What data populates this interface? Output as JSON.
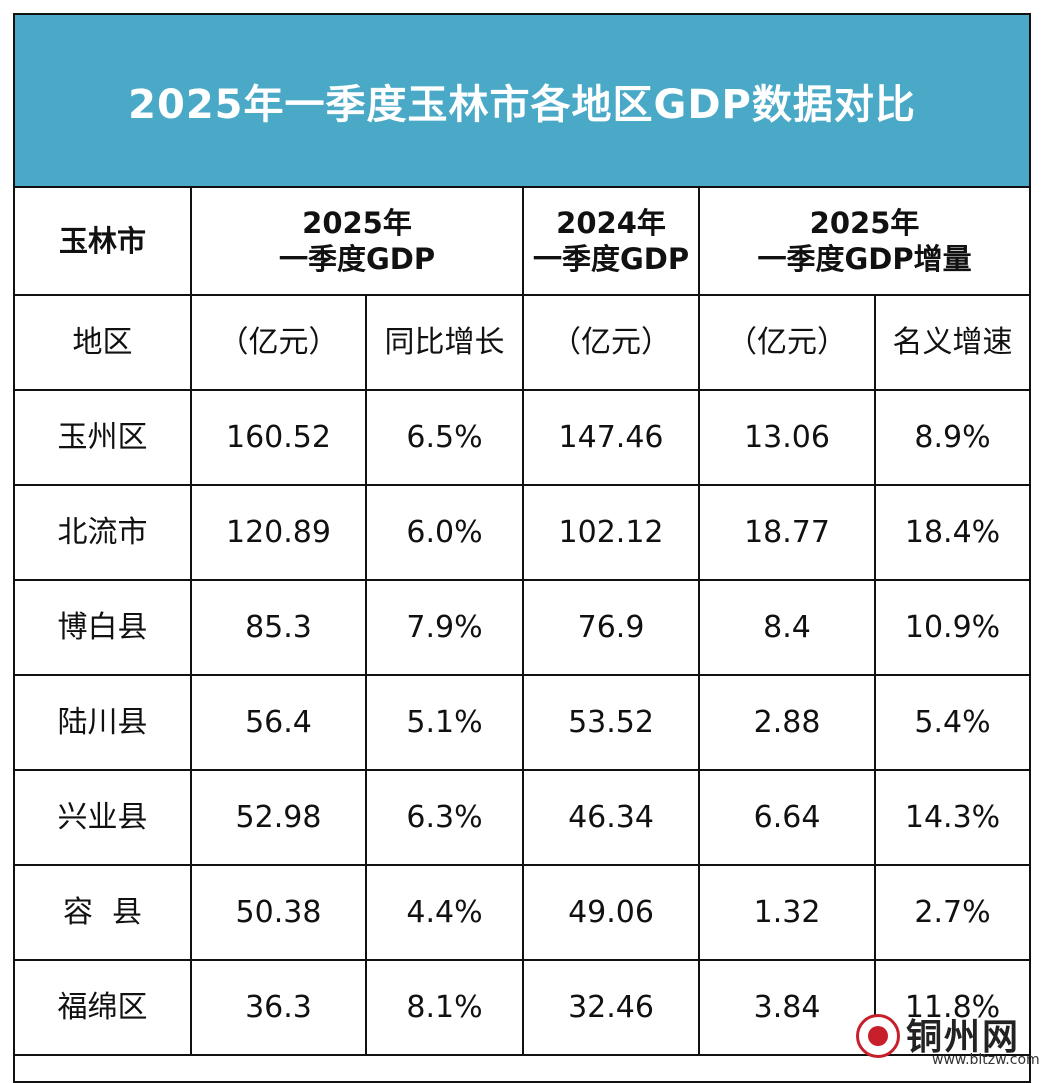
{
  "title": "2025年一季度玉林市各地区GDP数据对比",
  "header": {
    "city": "玉林市",
    "gdp2025_line1": "2025年",
    "gdp2025_line2": "一季度GDP",
    "gdp2024_line1": "2024年",
    "gdp2024_line2": "一季度GDP",
    "inc_line1": "2025年",
    "inc_line2": "一季度GDP增量"
  },
  "subheader": {
    "region": "地区",
    "unit_2025": "（亿元）",
    "yoy": "同比增长",
    "unit_2024": "（亿元）",
    "unit_inc": "（亿元）",
    "nominal": "名义增速"
  },
  "rows": [
    {
      "region": "玉州区",
      "gdp2025": "160.52",
      "yoy": "6.5%",
      "gdp2024": "147.46",
      "increment": "13.06",
      "nominal": "8.9%"
    },
    {
      "region": "北流市",
      "gdp2025": "120.89",
      "yoy": "6.0%",
      "gdp2024": "102.12",
      "increment": "18.77",
      "nominal": "18.4%"
    },
    {
      "region": "博白县",
      "gdp2025": "85.3",
      "yoy": "7.9%",
      "gdp2024": "76.9",
      "increment": "8.4",
      "nominal": "10.9%"
    },
    {
      "region": "陆川县",
      "gdp2025": "56.4",
      "yoy": "5.1%",
      "gdp2024": "53.52",
      "increment": "2.88",
      "nominal": "5.4%"
    },
    {
      "region": "兴业县",
      "gdp2025": "52.98",
      "yoy": "6.3%",
      "gdp2024": "46.34",
      "increment": "6.64",
      "nominal": "14.3%"
    },
    {
      "region": "容  县",
      "gdp2025": "50.38",
      "yoy": "4.4%",
      "gdp2024": "49.06",
      "increment": "1.32",
      "nominal": "2.7%"
    },
    {
      "region": "福绵区",
      "gdp2025": "36.3",
      "yoy": "8.1%",
      "gdp2024": "32.46",
      "increment": "3.84",
      "nominal": "11.8%"
    }
  ],
  "watermark": {
    "name": "铜州网",
    "url": "www.bltzw.com"
  },
  "colors": {
    "title_bg": "#4aa9c6",
    "title_text": "#ffffff",
    "seal": "#c8202a"
  }
}
